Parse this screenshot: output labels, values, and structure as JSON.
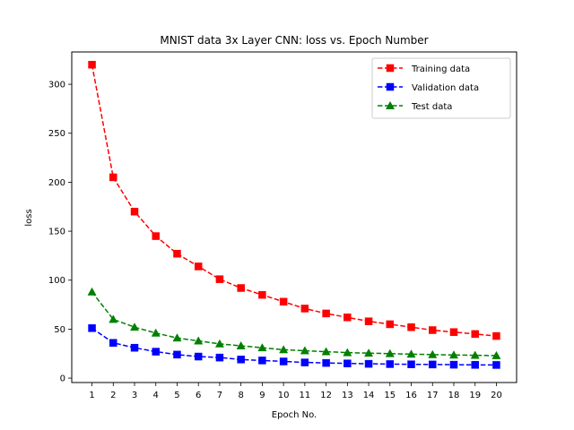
{
  "chart_data": {
    "type": "line",
    "title": "MNIST data 3x Layer CNN: loss vs. Epoch Number",
    "xlabel": "Epoch No.",
    "ylabel": "loss",
    "x": [
      1,
      2,
      3,
      4,
      5,
      6,
      7,
      8,
      9,
      10,
      11,
      12,
      13,
      14,
      15,
      16,
      17,
      18,
      19,
      20
    ],
    "xlim": [
      0.05,
      20.95
    ],
    "ylim": [
      -4.5,
      333
    ],
    "xticks": [
      1,
      2,
      3,
      4,
      5,
      6,
      7,
      8,
      9,
      10,
      11,
      12,
      13,
      14,
      15,
      16,
      17,
      18,
      19,
      20
    ],
    "yticks": [
      0,
      50,
      100,
      150,
      200,
      250,
      300
    ],
    "grid": false,
    "legend_position": "upper right",
    "series": [
      {
        "name": "Training data",
        "color": "#ff0000",
        "marker": "square",
        "linestyle": "dashed",
        "values": [
          320,
          205,
          170,
          145,
          127,
          114,
          101,
          92,
          85,
          78,
          71,
          66,
          62,
          58,
          55,
          52,
          49,
          47,
          45,
          43
        ]
      },
      {
        "name": "Validation data",
        "color": "#0000ff",
        "marker": "square",
        "linestyle": "dashed",
        "values": [
          51,
          36,
          31,
          27,
          24,
          22,
          21,
          19,
          18,
          17,
          16,
          15.5,
          15,
          14.6,
          14.3,
          14.1,
          13.9,
          13.7,
          13.5,
          13.4
        ]
      },
      {
        "name": "Test data",
        "color": "#008000",
        "marker": "triangle",
        "linestyle": "dashed",
        "values": [
          88,
          60,
          52,
          46,
          41,
          38,
          35,
          33,
          31,
          29,
          28,
          27,
          26,
          25.5,
          25,
          24.5,
          24,
          23.6,
          23.3,
          23
        ]
      }
    ]
  }
}
